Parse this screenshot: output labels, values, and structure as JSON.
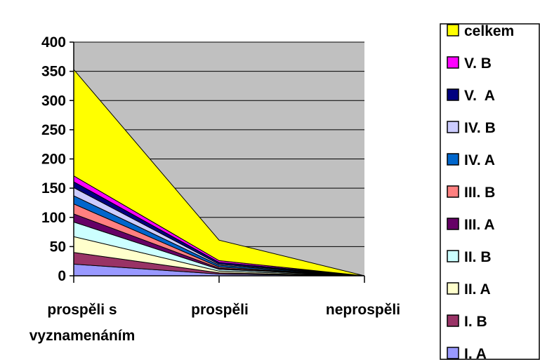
{
  "chart_data": {
    "type": "area",
    "stacked": true,
    "categories": [
      "prospěli s vyznamenáním",
      "prospěli",
      "neprospěli"
    ],
    "category_lines": [
      [
        "prospěli s",
        "vyznamenáním"
      ],
      [
        "prospěli"
      ],
      [
        "neprospěli"
      ]
    ],
    "ylim": [
      0,
      400
    ],
    "yticks": [
      "0",
      "50",
      "100",
      "150",
      "200",
      "250",
      "300",
      "350",
      "400"
    ],
    "grid": true,
    "legend_position": "right",
    "series": [
      {
        "name": "I. A",
        "color": "#9999FF",
        "values": [
          20,
          3,
          0
        ]
      },
      {
        "name": "I. B",
        "color": "#993366",
        "values": [
          20,
          2,
          0
        ]
      },
      {
        "name": "II. A",
        "color": "#FFFFCC",
        "values": [
          27,
          3,
          0
        ]
      },
      {
        "name": "II. B",
        "color": "#CCFFFF",
        "values": [
          25,
          3,
          0
        ]
      },
      {
        "name": "III. A",
        "color": "#660066",
        "values": [
          14,
          2,
          0
        ]
      },
      {
        "name": "III. B",
        "color": "#FF8080",
        "values": [
          17,
          2,
          0
        ]
      },
      {
        "name": "IV. A",
        "color": "#0066CC",
        "values": [
          14,
          3,
          0
        ]
      },
      {
        "name": "IV. B",
        "color": "#CCCCFF",
        "values": [
          14,
          2,
          0
        ]
      },
      {
        "name": "V.  A",
        "color": "#000080",
        "values": [
          10,
          3,
          0
        ]
      },
      {
        "name": "V. B",
        "color": "#FF00FF",
        "values": [
          10,
          3,
          0
        ]
      },
      {
        "name": "celkem",
        "color": "#FFFF00",
        "values": [
          182,
          35,
          0
        ]
      }
    ]
  }
}
